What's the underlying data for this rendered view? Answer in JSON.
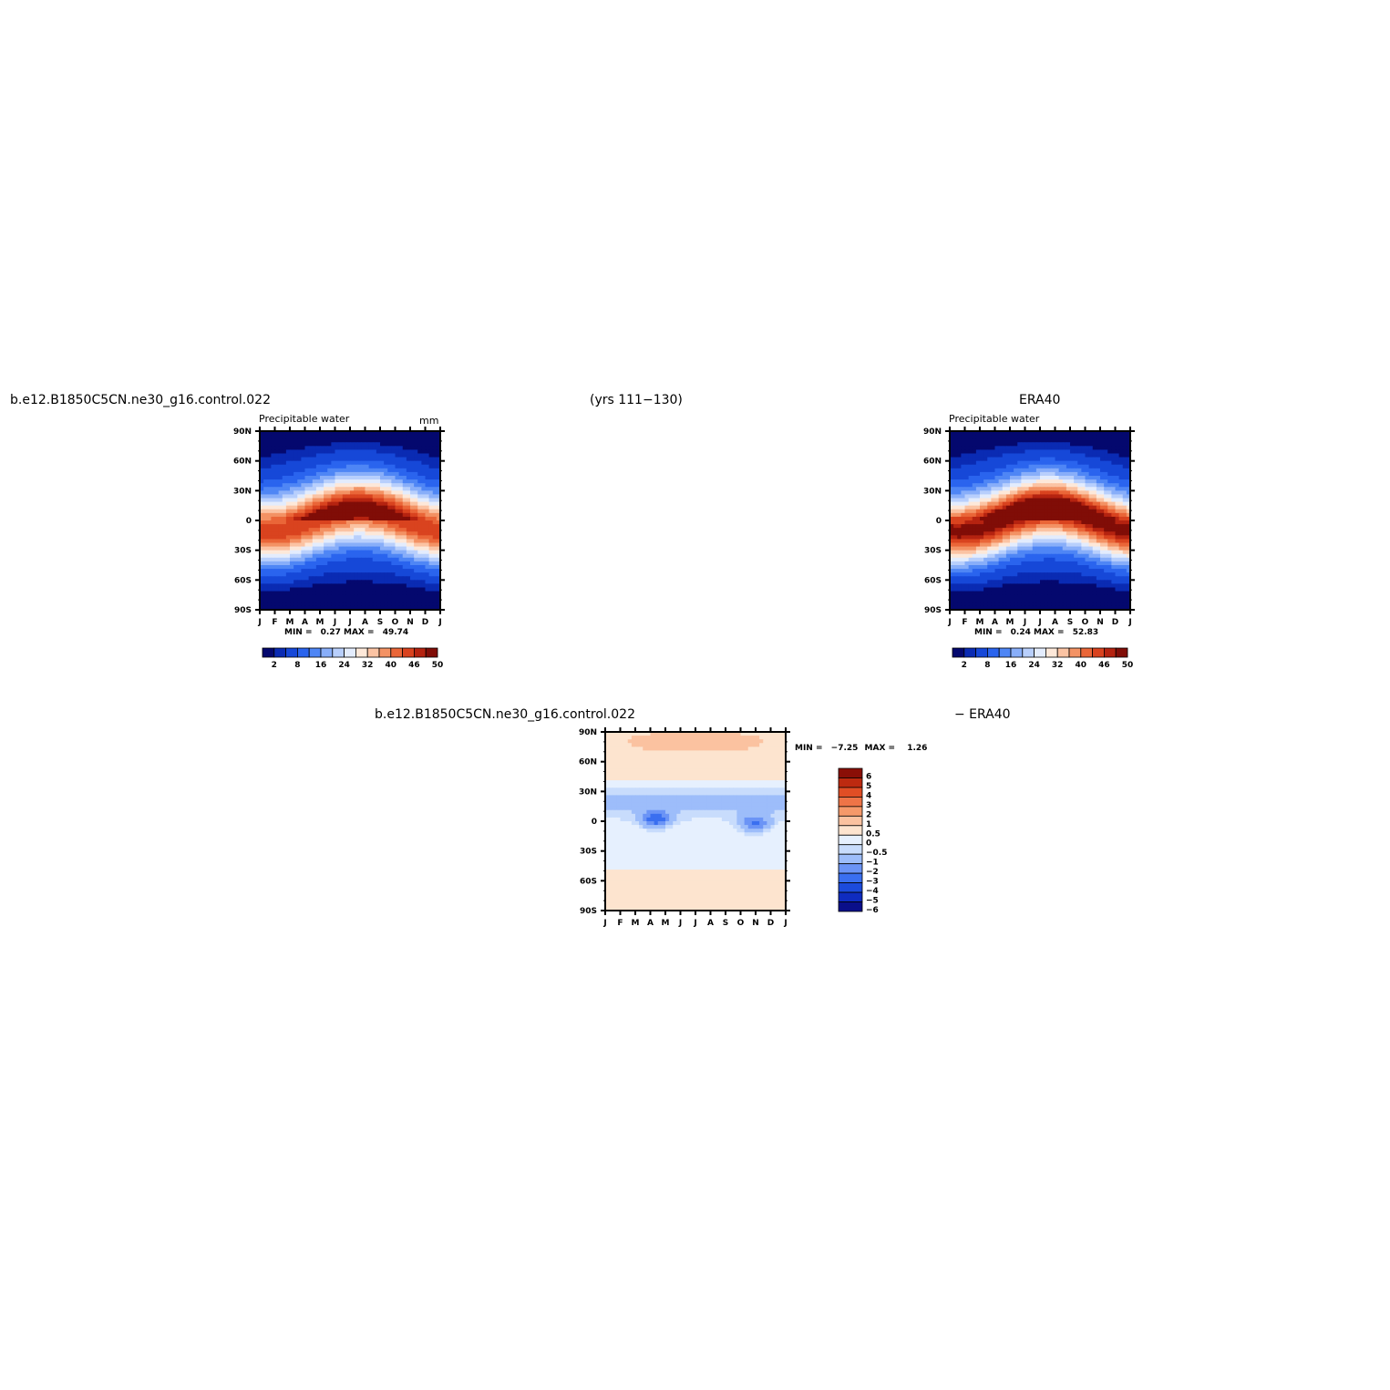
{
  "headers": {
    "case_name": "b.e12.B1850C5CN.ne30_g16.control.022",
    "years": "(yrs 111−130)",
    "obs_name": "ERA40",
    "diff_case": "b.e12.B1850C5CN.ne30_g16.control.022",
    "diff_obs": "− ERA40"
  },
  "colors": {
    "abs_palette": [
      "#04086e",
      "#0a2bb3",
      "#1648d8",
      "#2a64ee",
      "#4f86f5",
      "#88aef9",
      "#b8cffc",
      "#e3ecfd",
      "#fde8d9",
      "#fbc3a3",
      "#f39264",
      "#ea6638",
      "#d9431f",
      "#b52310",
      "#800d07"
    ],
    "diff_palette": [
      "#0a0f8a",
      "#0f2cc0",
      "#1c4bdc",
      "#3a6ff0",
      "#6b94f6",
      "#9dbdfa",
      "#c8dcfc",
      "#e6f0fe",
      "#fde4cf",
      "#fbc2a0",
      "#f5996a",
      "#ee7447",
      "#e04e25",
      "#bd2a10",
      "#8a0f07"
    ]
  },
  "chart_data": [
    {
      "type": "heatmap",
      "title": "Precipitable water",
      "units": "mm",
      "x_categories": [
        "J",
        "F",
        "M",
        "A",
        "M",
        "J",
        "J",
        "A",
        "S",
        "O",
        "N",
        "D",
        "J"
      ],
      "y_tick_labels": [
        "90N",
        "60N",
        "30N",
        "0",
        "30S",
        "60S",
        "90S"
      ],
      "ylim": [
        -90,
        90
      ],
      "stats": {
        "min_label": "MIN =",
        "min": "0.27",
        "max_label": "MAX =",
        "max": "49.74"
      },
      "colorbar_labels": [
        "2",
        "8",
        "16",
        "24",
        "32",
        "40",
        "46",
        "50"
      ],
      "peak": 44,
      "itcz_shift": 12
    },
    {
      "type": "heatmap",
      "title": "Precipitable water",
      "units": "",
      "x_categories": [
        "J",
        "F",
        "M",
        "A",
        "M",
        "J",
        "J",
        "A",
        "S",
        "O",
        "N",
        "D",
        "J"
      ],
      "y_tick_labels": [
        "90N",
        "60N",
        "30N",
        "0",
        "30S",
        "60S",
        "90S"
      ],
      "ylim": [
        -90,
        90
      ],
      "stats": {
        "min_label": "MIN =",
        "min": "0.24",
        "max_label": "MAX =",
        "max": "52.83"
      },
      "colorbar_labels": [
        "2",
        "8",
        "16",
        "24",
        "32",
        "40",
        "46",
        "50"
      ],
      "peak": 49,
      "itcz_shift": 12
    },
    {
      "type": "heatmap",
      "title": "",
      "units": "",
      "x_categories": [
        "J",
        "F",
        "M",
        "A",
        "M",
        "J",
        "J",
        "A",
        "S",
        "O",
        "N",
        "D",
        "J"
      ],
      "y_tick_labels": [
        "90N",
        "60N",
        "30N",
        "0",
        "30S",
        "60S",
        "90S"
      ],
      "ylim": [
        -90,
        90
      ],
      "stats": {
        "min_label": "MIN =",
        "min": "−7.25",
        "max_label": "MAX =",
        "max": "1.26"
      },
      "colorbar_labels": [
        "6",
        "5",
        "4",
        "3",
        "2",
        "1",
        "0.5",
        "0",
        "−0.5",
        "−1",
        "−2",
        "−3",
        "−4",
        "−5",
        "−6"
      ]
    }
  ]
}
